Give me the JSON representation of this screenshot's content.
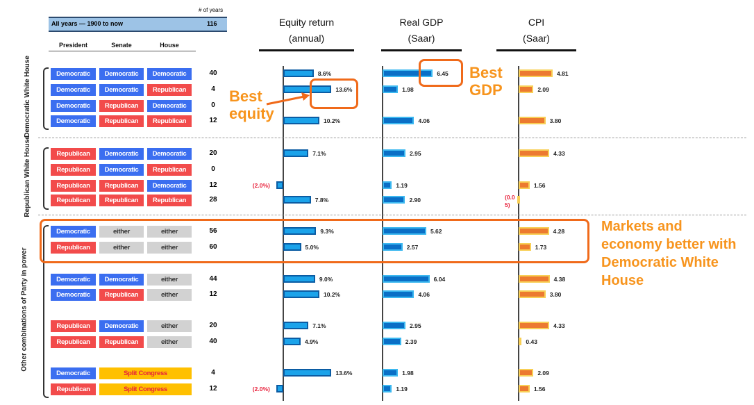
{
  "header": {
    "years_label": "# of years",
    "all_years_label": "All years — 1900 to now",
    "all_years_count": "116",
    "col_president": "President",
    "col_senate": "Senate",
    "col_house": "House"
  },
  "groups": {
    "dem": "Democratic White House",
    "rep": "Republican White House",
    "other": "Other combinations of Party in power"
  },
  "annotations": {
    "best_equity": "Best equity",
    "best_gdp": "Best GDP",
    "markets": "Markets and economy better with Democratic White House"
  },
  "colors": {
    "Democratic": "#3b6ef0",
    "Republican": "#f24b4b",
    "either": "#d2d2d2",
    "Split Congress": "#ffc000",
    "annotation": "#f7941d"
  },
  "chart_data": {
    "type": "bar",
    "titles": {
      "equity": [
        "Equity return",
        "(annual)"
      ],
      "gdp": [
        "Real GDP",
        "(Saar)"
      ],
      "cpi": [
        "CPI",
        "(Saar)"
      ]
    },
    "rows": [
      {
        "president": "Democratic",
        "senate": "Democratic",
        "house": "Democratic",
        "years": "40",
        "equity": 8.6,
        "equity_label": "8.6%",
        "gdp": 6.45,
        "gdp_label": "6.45",
        "cpi": 4.81,
        "cpi_label": "4.81"
      },
      {
        "president": "Democratic",
        "senate": "Democratic",
        "house": "Republican",
        "years": "4",
        "equity": 13.6,
        "equity_label": "13.6%",
        "gdp": 1.98,
        "gdp_label": "1.98",
        "cpi": 2.09,
        "cpi_label": "2.09"
      },
      {
        "president": "Democratic",
        "senate": "Republican",
        "house": "Democratic",
        "years": "0",
        "equity": null,
        "gdp": null,
        "cpi": null
      },
      {
        "president": "Democratic",
        "senate": "Republican",
        "house": "Republican",
        "years": "12",
        "equity": 10.2,
        "equity_label": "10.2%",
        "gdp": 4.06,
        "gdp_label": "4.06",
        "cpi": 3.8,
        "cpi_label": "3.80"
      },
      {
        "president": "Republican",
        "senate": "Democratic",
        "house": "Democratic",
        "years": "20",
        "equity": 7.1,
        "equity_label": "7.1%",
        "gdp": 2.95,
        "gdp_label": "2.95",
        "cpi": 4.33,
        "cpi_label": "4.33"
      },
      {
        "president": "Republican",
        "senate": "Democratic",
        "house": "Republican",
        "years": "0",
        "equity": null,
        "gdp": null,
        "cpi": null
      },
      {
        "president": "Republican",
        "senate": "Republican",
        "house": "Democratic",
        "years": "12",
        "equity": -2.0,
        "equity_label": "(2.0%)",
        "gdp": 1.19,
        "gdp_label": "1.19",
        "cpi": 1.56,
        "cpi_label": "1.56"
      },
      {
        "president": "Republican",
        "senate": "Republican",
        "house": "Republican",
        "years": "28",
        "equity": 7.8,
        "equity_label": "7.8%",
        "gdp": 2.9,
        "gdp_label": "2.90",
        "cpi": -0.05,
        "cpi_label": "(0.05)"
      },
      {
        "president": "Democratic",
        "senate": "either",
        "house": "either",
        "years": "56",
        "equity": 9.3,
        "equity_label": "9.3%",
        "gdp": 5.62,
        "gdp_label": "5.62",
        "cpi": 4.28,
        "cpi_label": "4.28"
      },
      {
        "president": "Republican",
        "senate": "either",
        "house": "either",
        "years": "60",
        "equity": 5.0,
        "equity_label": "5.0%",
        "gdp": 2.57,
        "gdp_label": "2.57",
        "cpi": 1.73,
        "cpi_label": "1.73"
      },
      {
        "president": "Democratic",
        "senate": "Democratic",
        "house": "either",
        "years": "44",
        "equity": 9.0,
        "equity_label": "9.0%",
        "gdp": 6.04,
        "gdp_label": "6.04",
        "cpi": 4.38,
        "cpi_label": "4.38"
      },
      {
        "president": "Democratic",
        "senate": "Republican",
        "house": "either",
        "years": "12",
        "equity": 10.2,
        "equity_label": "10.2%",
        "gdp": 4.06,
        "gdp_label": "4.06",
        "cpi": 3.8,
        "cpi_label": "3.80"
      },
      {
        "president": "Republican",
        "senate": "Democratic",
        "house": "either",
        "years": "20",
        "equity": 7.1,
        "equity_label": "7.1%",
        "gdp": 2.95,
        "gdp_label": "2.95",
        "cpi": 4.33,
        "cpi_label": "4.33"
      },
      {
        "president": "Republican",
        "senate": "Republican",
        "house": "either",
        "years": "40",
        "equity": 4.9,
        "equity_label": "4.9%",
        "gdp": 2.39,
        "gdp_label": "2.39",
        "cpi": 0.43,
        "cpi_label": "0.43"
      },
      {
        "president": "Democratic",
        "senate": "Split Congress",
        "house": null,
        "years": "4",
        "equity": 13.6,
        "equity_label": "13.6%",
        "gdp": 1.98,
        "gdp_label": "1.98",
        "cpi": 2.09,
        "cpi_label": "2.09"
      },
      {
        "president": "Republican",
        "senate": "Split Congress",
        "house": null,
        "years": "12",
        "equity": -2.0,
        "equity_label": "(2.0%)",
        "gdp": 1.19,
        "gdp_label": "1.19",
        "cpi": 1.56,
        "cpi_label": "1.56"
      }
    ]
  }
}
